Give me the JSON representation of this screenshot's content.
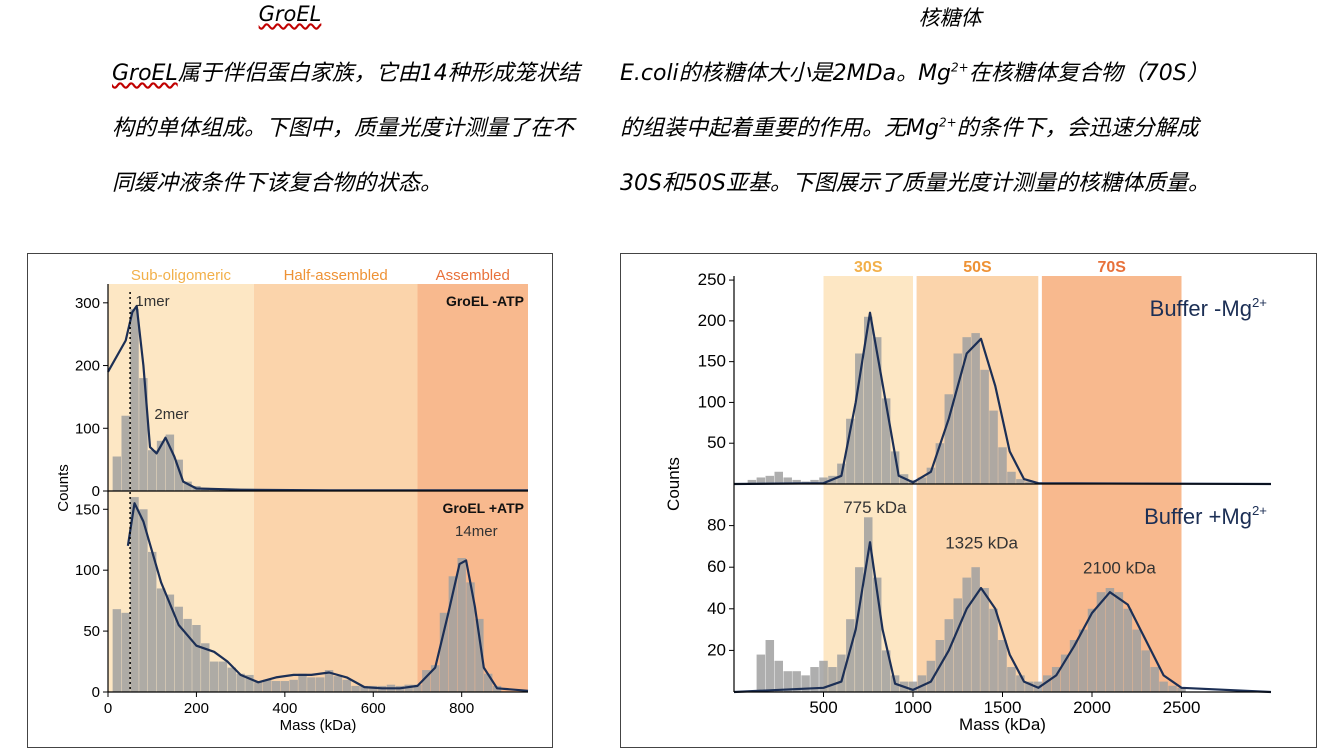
{
  "left": {
    "title": "GroEL",
    "para_line1_u": "GroEL",
    "para_line1_rest": "属于伴侣蛋白家族，它由14种形成笼状结",
    "para_line2": "构的单体组成。下图中，质量光度计测量了在不",
    "para_line3": "同缓冲液条件下该复合物的状态。"
  },
  "right": {
    "title": "核糖体",
    "para_line1_a": "E.coli的核糖体大小是2MDa。Mg",
    "para_line1_b": "在核糖体复合物（70S）",
    "para_line2_a": "的组装中起着重要的作用。无Mg",
    "para_line2_b": "的条件下，会迅速分解成",
    "para_line3": "30S和50S亚基。下图展示了质量光度计测量的核糖体质量。",
    "sup": "2+"
  },
  "chart_data": [
    {
      "type": "bar",
      "panel": "GroEL",
      "xlabel": "Mass (kDa)",
      "ylabel": "Counts",
      "xlim": [
        0,
        950
      ],
      "xticks": [
        0,
        200,
        400,
        600,
        800
      ],
      "regions": [
        {
          "label": "Sub-oligomeric",
          "from": 0,
          "to": 330,
          "color": "#fde7c4",
          "textcolor": "#f2b04a"
        },
        {
          "label": "Half-assembled",
          "from": 330,
          "to": 700,
          "color": "#fbd4ab",
          "textcolor": "#ee9235"
        },
        {
          "label": "Assembled",
          "from": 700,
          "to": 950,
          "color": "#f8b98e",
          "textcolor": "#e8713a"
        }
      ],
      "vline": 50,
      "subplots": [
        {
          "label": "GroEL -ATP",
          "ylim": [
            0,
            330
          ],
          "yticks": [
            0,
            100,
            200,
            300
          ],
          "x": [
            20,
            40,
            60,
            80,
            100,
            120,
            140,
            160,
            180,
            200,
            220,
            240,
            260,
            280,
            300,
            320,
            340,
            360,
            380,
            400
          ],
          "values": [
            55,
            120,
            290,
            180,
            65,
            80,
            90,
            50,
            15,
            8,
            5,
            4,
            3,
            3,
            2,
            2,
            2,
            1,
            1,
            1
          ],
          "annotations": [
            {
              "text": "1mer",
              "x": 62,
              "y": 295
            },
            {
              "text": "2mer",
              "x": 105,
              "y": 115
            }
          ],
          "curve": [
            [
              0,
              190
            ],
            [
              40,
              240
            ],
            [
              55,
              285
            ],
            [
              65,
              295
            ],
            [
              80,
              200
            ],
            [
              95,
              70
            ],
            [
              110,
              60
            ],
            [
              130,
              85
            ],
            [
              150,
              55
            ],
            [
              170,
              15
            ],
            [
              200,
              4
            ],
            [
              300,
              2
            ],
            [
              500,
              1
            ],
            [
              950,
              1
            ]
          ]
        },
        {
          "label": "GroEL +ATP",
          "ylim": [
            0,
            165
          ],
          "yticks": [
            0,
            50,
            100,
            150
          ],
          "x": [
            20,
            40,
            60,
            80,
            100,
            120,
            140,
            160,
            180,
            200,
            220,
            240,
            260,
            280,
            300,
            320,
            340,
            360,
            380,
            400,
            420,
            440,
            460,
            480,
            500,
            520,
            540,
            560,
            580,
            600,
            620,
            640,
            660,
            680,
            700,
            720,
            740,
            760,
            780,
            800,
            820,
            840,
            860,
            880
          ],
          "values": [
            68,
            65,
            160,
            150,
            115,
            85,
            80,
            70,
            60,
            55,
            40,
            25,
            25,
            20,
            15,
            14,
            8,
            10,
            9,
            9,
            10,
            15,
            12,
            12,
            18,
            13,
            10,
            5,
            5,
            5,
            5,
            6,
            5,
            6,
            6,
            18,
            22,
            65,
            95,
            110,
            90,
            60,
            15,
            5
          ],
          "annotations": [
            {
              "text": "14mer",
              "x": 785,
              "y": 128
            }
          ],
          "curve": [
            [
              45,
              120
            ],
            [
              60,
              155
            ],
            [
              80,
              140
            ],
            [
              120,
              90
            ],
            [
              160,
              55
            ],
            [
              200,
              38
            ],
            [
              240,
              33
            ],
            [
              270,
              25
            ],
            [
              300,
              14
            ],
            [
              340,
              8
            ],
            [
              380,
              12
            ],
            [
              420,
              14
            ],
            [
              460,
              14
            ],
            [
              500,
              16
            ],
            [
              540,
              12
            ],
            [
              580,
              4
            ],
            [
              620,
              3
            ],
            [
              660,
              3
            ],
            [
              700,
              5
            ],
            [
              740,
              20
            ],
            [
              770,
              65
            ],
            [
              795,
              105
            ],
            [
              810,
              108
            ],
            [
              830,
              70
            ],
            [
              850,
              20
            ],
            [
              880,
              3
            ],
            [
              950,
              1
            ]
          ]
        }
      ]
    },
    {
      "type": "bar",
      "panel": "核糖体",
      "xlabel": "Mass (kDa)",
      "ylabel": "Counts",
      "xlim": [
        0,
        3000
      ],
      "xticks": [
        500,
        1000,
        1500,
        2000,
        2500
      ],
      "regions": [
        {
          "label": "30S",
          "from": 500,
          "to": 1000,
          "color": "#fde7c4",
          "textcolor": "#f2b04a"
        },
        {
          "label": "50S",
          "from": 1020,
          "to": 1700,
          "color": "#fbd4ab",
          "textcolor": "#ee9235"
        },
        {
          "label": "70S",
          "from": 1720,
          "to": 2500,
          "color": "#f8b98e",
          "textcolor": "#e8713a"
        }
      ],
      "subplots": [
        {
          "label": "Buffer -Mg",
          "label_sup": "2+",
          "ylim": [
            0,
            255
          ],
          "yticks": [
            50,
            100,
            150,
            200,
            250
          ],
          "x": [
            100,
            150,
            200,
            250,
            300,
            350,
            400,
            450,
            500,
            550,
            600,
            650,
            700,
            750,
            800,
            850,
            900,
            950,
            1000,
            1050,
            1100,
            1150,
            1200,
            1250,
            1300,
            1350,
            1400,
            1450,
            1500,
            1550,
            1600,
            1650,
            1700,
            1750
          ],
          "values": [
            5,
            8,
            10,
            15,
            8,
            5,
            3,
            5,
            8,
            10,
            25,
            80,
            160,
            205,
            180,
            105,
            40,
            12,
            5,
            8,
            20,
            50,
            110,
            160,
            180,
            185,
            140,
            90,
            45,
            15,
            6,
            3,
            2,
            1
          ],
          "curve": [
            [
              0,
              0
            ],
            [
              500,
              1
            ],
            [
              600,
              10
            ],
            [
              680,
              100
            ],
            [
              760,
              210
            ],
            [
              840,
              110
            ],
            [
              920,
              10
            ],
            [
              1000,
              2
            ],
            [
              1100,
              15
            ],
            [
              1200,
              80
            ],
            [
              1300,
              160
            ],
            [
              1380,
              178
            ],
            [
              1460,
              120
            ],
            [
              1540,
              40
            ],
            [
              1620,
              6
            ],
            [
              1700,
              1
            ],
            [
              3000,
              0
            ]
          ]
        },
        {
          "label": "Buffer +Mg",
          "label_sup": "2+",
          "ylim": [
            0,
            100
          ],
          "yticks": [
            20,
            40,
            60,
            80
          ],
          "x": [
            150,
            200,
            250,
            300,
            350,
            400,
            450,
            500,
            550,
            600,
            650,
            700,
            750,
            800,
            850,
            900,
            950,
            1000,
            1050,
            1100,
            1150,
            1200,
            1250,
            1300,
            1350,
            1400,
            1450,
            1500,
            1550,
            1600,
            1650,
            1700,
            1750,
            1800,
            1850,
            1900,
            1950,
            2000,
            2050,
            2100,
            2150,
            2200,
            2250,
            2300,
            2350,
            2400,
            2450,
            2500
          ],
          "values": [
            18,
            25,
            15,
            10,
            10,
            8,
            12,
            15,
            12,
            18,
            35,
            60,
            84,
            55,
            20,
            8,
            5,
            5,
            8,
            15,
            25,
            35,
            45,
            55,
            60,
            50,
            40,
            25,
            12,
            8,
            5,
            5,
            8,
            12,
            18,
            25,
            30,
            40,
            48,
            50,
            48,
            40,
            30,
            20,
            12,
            5,
            3,
            2
          ],
          "annotations": [
            {
              "text": "775 kDa",
              "x": 610,
              "y": 86
            },
            {
              "text": "1325 kDa",
              "x": 1180,
              "y": 69
            },
            {
              "text": "2100 kDa",
              "x": 1950,
              "y": 57
            }
          ],
          "curve": [
            [
              0,
              0
            ],
            [
              500,
              2
            ],
            [
              600,
              5
            ],
            [
              680,
              30
            ],
            [
              760,
              72
            ],
            [
              830,
              30
            ],
            [
              900,
              4
            ],
            [
              1000,
              1
            ],
            [
              1100,
              5
            ],
            [
              1200,
              20
            ],
            [
              1300,
              40
            ],
            [
              1380,
              50
            ],
            [
              1460,
              40
            ],
            [
              1540,
              18
            ],
            [
              1620,
              5
            ],
            [
              1700,
              2
            ],
            [
              1800,
              8
            ],
            [
              1900,
              22
            ],
            [
              2000,
              38
            ],
            [
              2100,
              48
            ],
            [
              2200,
              42
            ],
            [
              2300,
              25
            ],
            [
              2400,
              8
            ],
            [
              2500,
              2
            ],
            [
              3000,
              0
            ]
          ]
        }
      ]
    }
  ]
}
